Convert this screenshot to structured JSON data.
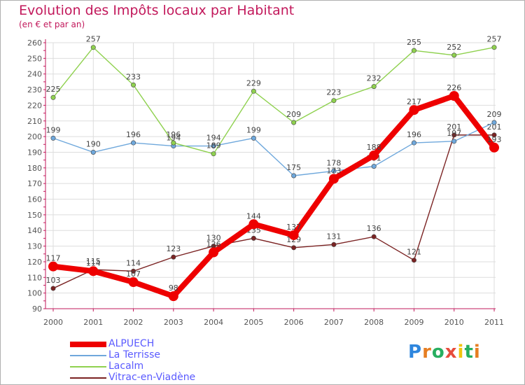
{
  "title": "Evolution des Impôts locaux par Habitant",
  "subtitle": "(en € et par an)",
  "logo": {
    "text": "Proxiti",
    "colors": [
      "#2e86de",
      "#e67e22",
      "#27ae60",
      "#e74c3c",
      "#f1c40f",
      "#27ae60",
      "#e67e22"
    ]
  },
  "chart_data": {
    "type": "line",
    "x": [
      "2000",
      "2001",
      "2002",
      "2003",
      "2004",
      "2005",
      "2006",
      "2007",
      "2008",
      "2009",
      "2010",
      "2011"
    ],
    "ylim": [
      90,
      260
    ],
    "yticks": [
      "90",
      "100",
      "110",
      "120",
      "130",
      "140",
      "150",
      "160",
      "170",
      "180",
      "190",
      "200",
      "210",
      "220",
      "230",
      "240",
      "250",
      "260"
    ],
    "grid": true,
    "legend_position": "bottom-left",
    "series": [
      {
        "name": "Vitrac-en-Viadène",
        "color": "#7b2323",
        "values": [
          103,
          115,
          114,
          123,
          130,
          135,
          129,
          131,
          136,
          121,
          201,
          201
        ],
        "labels": [
          "103",
          "115",
          "114",
          "123",
          "130",
          "135",
          "129",
          "131",
          "136",
          "121",
          "201",
          "201"
        ]
      },
      {
        "name": "La Terrisse",
        "color": "#6fa8dc",
        "values": [
          199,
          190,
          196,
          194,
          194,
          199,
          175,
          178,
          181,
          196,
          197,
          209
        ],
        "labels": [
          "199",
          "190",
          "196",
          "194",
          "194",
          "199",
          "175",
          "178",
          "181",
          "196",
          "197",
          "209"
        ]
      },
      {
        "name": "Lacalm",
        "color": "#8fd14f",
        "values": [
          225,
          257,
          233,
          196,
          189,
          229,
          209,
          223,
          232,
          255,
          252,
          257
        ],
        "labels": [
          "225",
          "257",
          "233",
          "196",
          "189",
          "229",
          "209",
          "223",
          "232",
          "255",
          "252",
          "257"
        ]
      },
      {
        "name": "ALPUECH",
        "color": "#ee0000",
        "values": [
          117,
          114,
          107,
          98,
          126,
          144,
          137,
          173,
          188,
          217,
          226,
          193
        ],
        "labels": [
          "117",
          "114",
          "107",
          "98",
          "126",
          "144",
          "137",
          "173",
          "188",
          "217",
          "226",
          "193"
        ]
      }
    ],
    "legend": [
      "ALPUECH",
      "La Terrisse",
      "Lacalm",
      "Vitrac-en-Viadène"
    ]
  }
}
